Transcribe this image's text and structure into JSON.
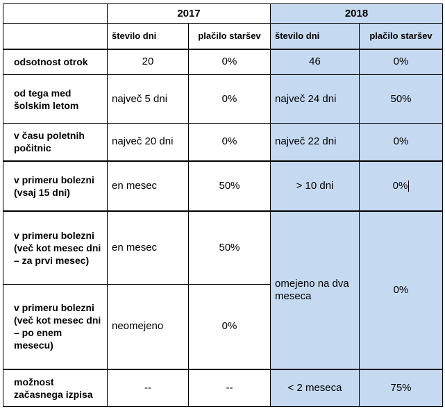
{
  "header": {
    "year_2017": "2017",
    "year_2018": "2018",
    "col_days": "število dni",
    "col_payment": "plačilo staršev"
  },
  "rows": [
    {
      "label": "odsotnost otrok",
      "d2017": "20",
      "p2017": "0%",
      "d2018": "46",
      "p2018": "0%"
    },
    {
      "label": "od tega med šolskim letom",
      "d2017": "največ 5 dni",
      "p2017": "0%",
      "d2018": "največ 24 dni",
      "p2018": "50%"
    },
    {
      "label": "v času poletnih počitnic",
      "d2017": "največ 20 dni",
      "p2017": "0%",
      "d2018": "največ 22 dni",
      "p2018": "0%"
    },
    {
      "label": "v primeru bolezni (vsaj 15 dni)",
      "d2017": "en mesec",
      "p2017": "50%",
      "d2018": "> 10 dni",
      "p2018": "0%"
    },
    {
      "label": "v primeru bolezni (več kot mesec dni – za prvi mesec)",
      "d2017": "en mesec",
      "p2017": "50%",
      "d2018": "omejeno na dva meseca",
      "p2018": "0%"
    },
    {
      "label": "v primeru bolezni (več kot mesec dni – po enem mesecu)",
      "d2017": "neomejeno",
      "p2017": "0%"
    },
    {
      "label": "možnost začasnega izpisa",
      "d2017": "--",
      "p2017": "--",
      "d2018": "< 2 meseca",
      "p2018": "75%"
    }
  ],
  "colors": {
    "highlight_2018": "#c5d9f1",
    "border": "#000000"
  }
}
